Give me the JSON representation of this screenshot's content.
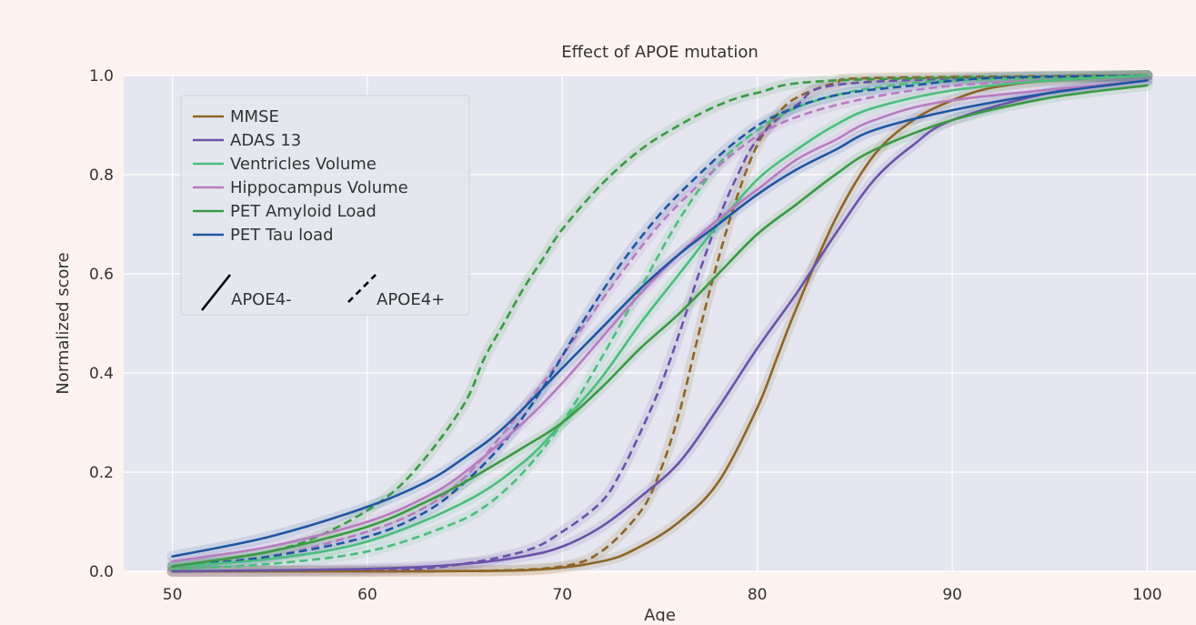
{
  "chart_data": {
    "type": "line",
    "title": "Effect of APOE mutation",
    "xlabel": "Age",
    "ylabel": "Normalized score",
    "xlim": [
      47.5,
      102.5
    ],
    "ylim": [
      0.0,
      1.0
    ],
    "x_ticks": [
      50,
      60,
      70,
      80,
      90,
      100
    ],
    "y_ticks": [
      0.0,
      0.2,
      0.4,
      0.6,
      0.8,
      1.0
    ],
    "x_tick_labels": [
      "50",
      "60",
      "70",
      "80",
      "90",
      "100"
    ],
    "y_tick_labels": [
      "0.0",
      "0.2",
      "0.4",
      "0.6",
      "0.8",
      "1.0"
    ],
    "grid": true,
    "legend_position": "top-left",
    "style_legend": [
      {
        "label": "APOE4-",
        "dash": "solid"
      },
      {
        "label": "APOE4+",
        "dash": "dashed"
      }
    ],
    "series": [
      {
        "name": "MMSE",
        "group": "APOE4-",
        "color": "#8c6528",
        "dash": "solid",
        "x": [
          50,
          60,
          68,
          72,
          74,
          76,
          78,
          80,
          81,
          82,
          84,
          86,
          88,
          90,
          92,
          95,
          100
        ],
        "y": [
          0.0,
          0.0,
          0.002,
          0.02,
          0.05,
          0.1,
          0.18,
          0.33,
          0.43,
          0.53,
          0.71,
          0.84,
          0.91,
          0.95,
          0.975,
          0.99,
          1.0
        ]
      },
      {
        "name": "MMSE",
        "group": "APOE4+",
        "color": "#8c6528",
        "dash": "dashed",
        "x": [
          50,
          60,
          66,
          70,
          72,
          74,
          75,
          76,
          77,
          78,
          79,
          80,
          81,
          82,
          84,
          86,
          100
        ],
        "y": [
          0.0,
          0.0,
          0.001,
          0.01,
          0.04,
          0.12,
          0.2,
          0.32,
          0.48,
          0.63,
          0.76,
          0.86,
          0.92,
          0.955,
          0.985,
          0.995,
          1.0
        ]
      },
      {
        "name": "ADAS 13",
        "group": "APOE4-",
        "color": "#6a53a8",
        "dash": "solid",
        "x": [
          50,
          60,
          65,
          68,
          70,
          72,
          74,
          76,
          78,
          80,
          82,
          84,
          86,
          88,
          90,
          95,
          100
        ],
        "y": [
          0.0,
          0.005,
          0.015,
          0.03,
          0.05,
          0.09,
          0.15,
          0.22,
          0.33,
          0.45,
          0.56,
          0.68,
          0.79,
          0.86,
          0.91,
          0.965,
          0.99
        ]
      },
      {
        "name": "ADAS 13",
        "group": "APOE4+",
        "color": "#6a53a8",
        "dash": "dashed",
        "x": [
          50,
          60,
          64,
          68,
          70,
          72,
          73,
          74,
          75,
          76,
          77,
          78,
          79,
          80,
          82,
          85,
          100
        ],
        "y": [
          0.0,
          0.002,
          0.01,
          0.04,
          0.08,
          0.14,
          0.2,
          0.28,
          0.37,
          0.48,
          0.6,
          0.71,
          0.8,
          0.87,
          0.94,
          0.985,
          1.0
        ]
      },
      {
        "name": "Ventricles Volume",
        "group": "APOE4-",
        "color": "#4cbd7d",
        "dash": "solid",
        "x": [
          50,
          55,
          60,
          65,
          68,
          70,
          72,
          74,
          76,
          78,
          80,
          82,
          84,
          86,
          90,
          95,
          100
        ],
        "y": [
          0.01,
          0.025,
          0.06,
          0.14,
          0.22,
          0.3,
          0.39,
          0.5,
          0.6,
          0.7,
          0.79,
          0.85,
          0.9,
          0.935,
          0.97,
          0.99,
          1.0
        ]
      },
      {
        "name": "Ventricles Volume",
        "group": "APOE4+",
        "color": "#4cbd7d",
        "dash": "dashed",
        "x": [
          50,
          55,
          60,
          64,
          66,
          68,
          70,
          72,
          74,
          76,
          78,
          80,
          82,
          84,
          86,
          90,
          100
        ],
        "y": [
          0.005,
          0.015,
          0.04,
          0.09,
          0.13,
          0.2,
          0.3,
          0.43,
          0.57,
          0.71,
          0.82,
          0.89,
          0.935,
          0.96,
          0.975,
          0.99,
          1.0
        ]
      },
      {
        "name": "Hippocampus Volume",
        "group": "APOE4-",
        "color": "#b77cc0",
        "dash": "solid",
        "x": [
          50,
          55,
          60,
          63,
          65,
          68,
          70,
          72,
          74,
          76,
          78,
          80,
          82,
          84,
          86,
          90,
          100
        ],
        "y": [
          0.02,
          0.05,
          0.1,
          0.15,
          0.2,
          0.3,
          0.38,
          0.47,
          0.56,
          0.64,
          0.71,
          0.77,
          0.83,
          0.87,
          0.91,
          0.95,
          0.99
        ]
      },
      {
        "name": "Hippocampus Volume",
        "group": "APOE4+",
        "color": "#b77cc0",
        "dash": "dashed",
        "x": [
          50,
          55,
          60,
          63,
          65,
          67,
          69,
          71,
          73,
          75,
          77,
          79,
          81,
          84,
          88,
          92,
          100
        ],
        "y": [
          0.01,
          0.03,
          0.08,
          0.13,
          0.19,
          0.28,
          0.38,
          0.49,
          0.6,
          0.7,
          0.78,
          0.85,
          0.9,
          0.94,
          0.97,
          0.985,
          1.0
        ]
      },
      {
        "name": "PET Amyloid Load",
        "group": "APOE4-",
        "color": "#3a9a44",
        "dash": "solid",
        "x": [
          50,
          55,
          60,
          63,
          65,
          68,
          70,
          72,
          74,
          76,
          78,
          80,
          82,
          84,
          86,
          90,
          95,
          100
        ],
        "y": [
          0.01,
          0.04,
          0.09,
          0.14,
          0.18,
          0.25,
          0.3,
          0.37,
          0.45,
          0.52,
          0.6,
          0.68,
          0.74,
          0.8,
          0.85,
          0.91,
          0.955,
          0.98
        ]
      },
      {
        "name": "PET Amyloid Load",
        "group": "APOE4+",
        "color": "#3a9a44",
        "dash": "dashed",
        "x": [
          50,
          55,
          58,
          61,
          63,
          65,
          66,
          67,
          68,
          69,
          70,
          72,
          74,
          76,
          78,
          80,
          84,
          100
        ],
        "y": [
          0.01,
          0.04,
          0.08,
          0.15,
          0.23,
          0.34,
          0.43,
          0.5,
          0.57,
          0.63,
          0.69,
          0.78,
          0.85,
          0.9,
          0.94,
          0.965,
          0.99,
          1.0
        ]
      },
      {
        "name": "PET Tau load",
        "group": "APOE4-",
        "color": "#1f56a0",
        "dash": "solid",
        "x": [
          50,
          55,
          60,
          63,
          65,
          67,
          70,
          72,
          74,
          76,
          78,
          80,
          82,
          84,
          86,
          90,
          95,
          100
        ],
        "y": [
          0.03,
          0.07,
          0.13,
          0.18,
          0.23,
          0.29,
          0.41,
          0.49,
          0.57,
          0.64,
          0.7,
          0.76,
          0.81,
          0.85,
          0.89,
          0.93,
          0.965,
          0.99
        ]
      },
      {
        "name": "PET Tau load",
        "group": "APOE4+",
        "color": "#1f56a0",
        "dash": "dashed",
        "x": [
          50,
          55,
          60,
          63,
          65,
          67,
          69,
          71,
          73,
          75,
          77,
          79,
          81,
          84,
          88,
          92,
          100
        ],
        "y": [
          0.01,
          0.03,
          0.07,
          0.12,
          0.18,
          0.26,
          0.37,
          0.5,
          0.62,
          0.72,
          0.8,
          0.87,
          0.92,
          0.96,
          0.98,
          0.995,
          1.0
        ]
      }
    ]
  }
}
